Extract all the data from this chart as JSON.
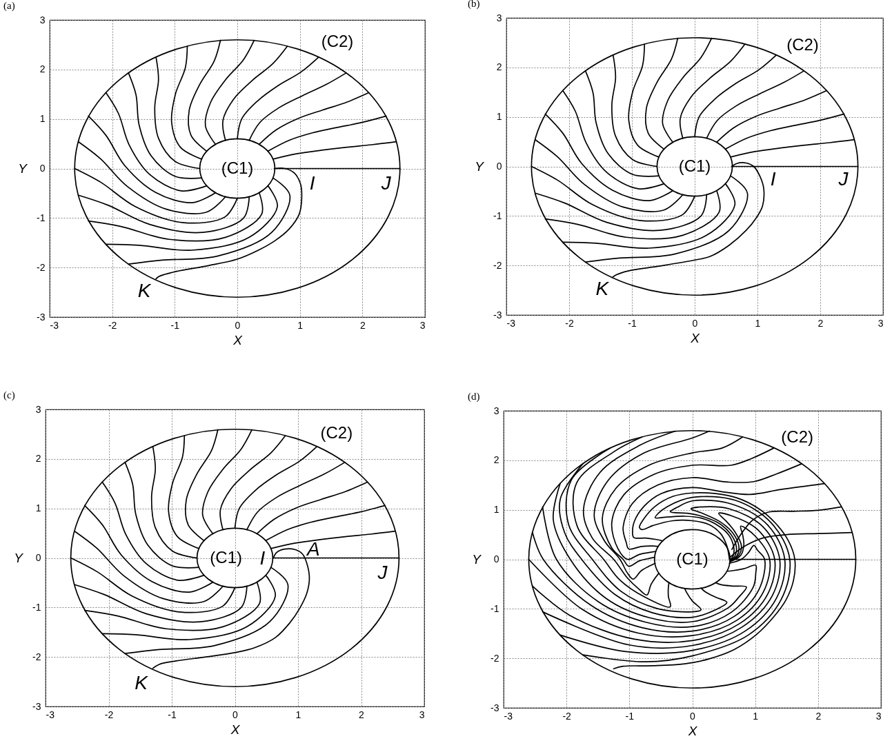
{
  "chart_data": [
    {
      "type": "line",
      "title": "(a)",
      "xlabel": "X",
      "ylabel": "Y",
      "xlim": [
        -3,
        3
      ],
      "ylim": [
        -3,
        3
      ],
      "xticks": [
        -3,
        -2,
        -1,
        0,
        1,
        2,
        3
      ],
      "yticks": [
        -3,
        -2,
        -1,
        0,
        1,
        2,
        3
      ],
      "grid": true,
      "annotations": [
        "(C1)",
        "(C2)",
        {
          "text": "I",
          "x": 1.01,
          "y": -0.31
        },
        {
          "text": "J",
          "x": 2.6,
          "y": 0
        },
        {
          "text": "K",
          "x": -1.3,
          "y": -2.23
        }
      ],
      "series": [
        {
          "color": "#000000",
          "x": [
            0.59,
            0.76,
            0.91,
            1.01,
            1.03,
            0.99,
            0.83,
            0.6,
            0.32,
            0,
            -0.46,
            -0.98,
            -1.25,
            -1.3
          ],
          "values": [
            0,
            0,
            -0.09,
            -0.31,
            -0.59,
            -0.92,
            -1.22,
            -1.46,
            -1.66,
            -1.83,
            -1.96,
            -2.08,
            -2.18,
            -2.23
          ]
        },
        {
          "color": "#000000",
          "x": [
            0.6,
            2.6
          ],
          "values": [
            0,
            0
          ]
        },
        {
          "color": "#000000",
          "x": [
            0.57,
            0.96,
            1.35,
            1.75,
            2.15,
            2.54
          ],
          "values": [
            0.19,
            0.3,
            0.37,
            0.43,
            0.48,
            0.54
          ]
        },
        {
          "color": "#000000",
          "x": [
            0.49,
            0.83,
            1.2,
            1.6,
            1.99,
            2.38
          ],
          "values": [
            0.35,
            0.57,
            0.72,
            0.83,
            0.93,
            1.06
          ]
        },
        {
          "color": "#000000",
          "x": [
            0.35,
            0.62,
            0.97,
            1.36,
            1.75,
            2.1
          ],
          "values": [
            0.49,
            0.78,
            1.01,
            1.18,
            1.34,
            1.53
          ]
        },
        {
          "color": "#000000",
          "x": [
            0.19,
            0.36,
            0.67,
            1.04,
            1.41,
            1.74
          ],
          "values": [
            0.57,
            0.93,
            1.23,
            1.47,
            1.69,
            1.93
          ]
        },
        {
          "color": "#000000",
          "x": [
            0,
            0.07,
            0.32,
            0.66,
            1.02,
            1.3
          ],
          "values": [
            0.6,
            1,
            1.36,
            1.68,
            1.95,
            2.25
          ]
        },
        {
          "color": "#000000",
          "x": [
            -0.19,
            -0.23,
            -0.06,
            0.24,
            0.57,
            0.8
          ],
          "values": [
            0.57,
            0.97,
            1.4,
            1.78,
            2.12,
            2.47
          ]
        },
        {
          "color": "#000000",
          "x": [
            -0.35,
            -0.51,
            -0.43,
            -0.19,
            0.1,
            0.27
          ],
          "values": [
            0.49,
            0.86,
            1.33,
            1.79,
            2.2,
            2.59
          ]
        },
        {
          "color": "#000000",
          "x": [
            -0.49,
            -0.74,
            -0.77,
            -0.6,
            -0.37,
            -0.27
          ],
          "values": [
            0.35,
            0.67,
            1.17,
            1.7,
            2.17,
            2.59
          ]
        },
        {
          "color": "#000000",
          "x": [
            -0.57,
            -0.91,
            -1.05,
            -0.99,
            -0.83,
            -0.8
          ],
          "values": [
            0.19,
            0.43,
            0.93,
            1.5,
            2.04,
            2.47
          ]
        },
        {
          "color": "#000000",
          "x": [
            -0.6,
            -0.99,
            -1.26,
            -1.32,
            -1.26,
            -1.3
          ],
          "values": [
            0,
            0.14,
            0.61,
            1.23,
            1.8,
            2.25
          ]
        },
        {
          "color": "#000000",
          "x": [
            -0.57,
            -0.99,
            -1.38,
            -1.57,
            -1.62,
            -1.74
          ],
          "values": [
            -0.19,
            -0.16,
            0.26,
            0.88,
            1.49,
            1.93
          ]
        },
        {
          "color": "#000000",
          "x": [
            -0.49,
            -0.9,
            -1.4,
            -1.73,
            -1.9,
            -2.1
          ],
          "values": [
            -0.35,
            -0.45,
            -0.12,
            0.48,
            1.11,
            1.53
          ]
        },
        {
          "color": "#000000",
          "x": [
            -0.35,
            -0.72,
            -1.31,
            -1.8,
            -2.1,
            -2.38
          ],
          "values": [
            -0.49,
            -0.69,
            -0.48,
            0.06,
            0.67,
            1.06
          ]
        },
        {
          "color": "#000000",
          "x": [
            -0.19,
            -0.49,
            -1.14,
            -1.76,
            -2.19,
            -2.54
          ],
          "values": [
            -0.57,
            -0.88,
            -0.82,
            -0.36,
            0.2,
            0.54
          ]
        },
        {
          "color": "#000000",
          "x": [
            0,
            -0.2,
            -0.88,
            -1.63,
            -2.18,
            -2.6
          ],
          "values": [
            -0.6,
            -0.98,
            -1.09,
            -0.77,
            -0.28,
            0
          ]
        },
        {
          "color": "#000000",
          "x": [
            0.19,
            0.1,
            -0.55,
            -1.4,
            -2.07,
            -2.54
          ],
          "values": [
            -0.57,
            -1,
            -1.29,
            -1.13,
            -0.74,
            -0.54
          ]
        },
        {
          "color": "#000000",
          "x": [
            0.35,
            0.39,
            -0.19,
            -1.09,
            -1.86,
            -2.38
          ],
          "values": [
            -0.49,
            -0.92,
            -1.39,
            -1.43,
            -1.17,
            -1.06
          ]
        },
        {
          "color": "#000000",
          "x": [
            0.49,
            0.64,
            0.19,
            -0.73,
            -1.57,
            -2.1
          ],
          "values": [
            -0.35,
            -0.77,
            -1.39,
            -1.65,
            -1.55,
            -1.53
          ]
        },
        {
          "color": "#000000",
          "x": [
            0.57,
            0.84,
            0.55,
            -0.32,
            -1.2,
            -1.74
          ],
          "values": [
            -0.19,
            -0.54,
            -1.29,
            -1.77,
            -1.85,
            -1.93
          ]
        }
      ]
    },
    {
      "type": "line",
      "title": "(b)",
      "xlabel": "X",
      "ylabel": "Y",
      "xlim": [
        -3,
        3
      ],
      "ylim": [
        -3,
        3
      ],
      "xticks": [
        -3,
        -2,
        -1,
        0,
        1,
        2,
        3
      ],
      "yticks": [
        -3,
        -2,
        -1,
        0,
        1,
        2,
        3
      ],
      "grid": true,
      "annotations": [
        "(C1)",
        "(C2)",
        {
          "text": "I",
          "x": 1.04,
          "y": -0.2
        },
        {
          "text": "J",
          "x": 2.6,
          "y": 0
        },
        {
          "text": "K",
          "x": -1.31,
          "y": -2.24
        }
      ],
      "series": [
        {
          "color": "#000000",
          "x": [
            0.59,
            0.67,
            0.82,
            0.94,
            1.04,
            1.1,
            1.08,
            0.98,
            0.82,
            0.55,
            0.24,
            0,
            -0.55,
            -1.06,
            -1.25,
            -1.31
          ],
          "values": [
            0,
            0.06,
            0.07,
            0,
            -0.2,
            -0.45,
            -0.8,
            -1.04,
            -1.29,
            -1.59,
            -1.82,
            -1.89,
            -2.01,
            -2.11,
            -2.19,
            -2.24
          ]
        },
        {
          "color": "#000000",
          "x": [
            0.6,
            2.6
          ],
          "values": [
            0,
            0
          ]
        },
        {
          "color": "#000000",
          "x": [
            0.57,
            0.96,
            1.35,
            1.75,
            2.15,
            2.54
          ],
          "values": [
            0.19,
            0.3,
            0.37,
            0.43,
            0.48,
            0.54
          ]
        },
        {
          "color": "#000000",
          "x": [
            0.49,
            0.83,
            1.2,
            1.6,
            1.99,
            2.38
          ],
          "values": [
            0.35,
            0.57,
            0.72,
            0.83,
            0.93,
            1.06
          ]
        },
        {
          "color": "#000000",
          "x": [
            0.35,
            0.62,
            0.97,
            1.36,
            1.75,
            2.1
          ],
          "values": [
            0.49,
            0.78,
            1.01,
            1.18,
            1.34,
            1.53
          ]
        },
        {
          "color": "#000000",
          "x": [
            0.19,
            0.36,
            0.67,
            1.04,
            1.41,
            1.74
          ],
          "values": [
            0.57,
            0.93,
            1.23,
            1.47,
            1.69,
            1.93
          ]
        },
        {
          "color": "#000000",
          "x": [
            0,
            0.07,
            0.32,
            0.66,
            1.02,
            1.3
          ],
          "values": [
            0.6,
            1,
            1.36,
            1.68,
            1.95,
            2.25
          ]
        },
        {
          "color": "#000000",
          "x": [
            -0.19,
            -0.23,
            -0.06,
            0.24,
            0.57,
            0.8
          ],
          "values": [
            0.57,
            0.97,
            1.4,
            1.78,
            2.12,
            2.47
          ]
        },
        {
          "color": "#000000",
          "x": [
            -0.35,
            -0.51,
            -0.43,
            -0.19,
            0.1,
            0.27
          ],
          "values": [
            0.49,
            0.86,
            1.33,
            1.79,
            2.2,
            2.59
          ]
        },
        {
          "color": "#000000",
          "x": [
            -0.49,
            -0.74,
            -0.77,
            -0.6,
            -0.37,
            -0.27
          ],
          "values": [
            0.35,
            0.67,
            1.17,
            1.7,
            2.17,
            2.59
          ]
        },
        {
          "color": "#000000",
          "x": [
            -0.57,
            -0.91,
            -1.05,
            -0.99,
            -0.83,
            -0.8
          ],
          "values": [
            0.19,
            0.43,
            0.93,
            1.5,
            2.04,
            2.47
          ]
        },
        {
          "color": "#000000",
          "x": [
            -0.6,
            -0.99,
            -1.26,
            -1.32,
            -1.26,
            -1.3
          ],
          "values": [
            0,
            0.14,
            0.61,
            1.23,
            1.8,
            2.25
          ]
        },
        {
          "color": "#000000",
          "x": [
            -0.57,
            -0.99,
            -1.38,
            -1.57,
            -1.62,
            -1.74
          ],
          "values": [
            -0.19,
            -0.16,
            0.26,
            0.88,
            1.49,
            1.93
          ]
        },
        {
          "color": "#000000",
          "x": [
            -0.49,
            -0.9,
            -1.4,
            -1.73,
            -1.9,
            -2.1
          ],
          "values": [
            -0.35,
            -0.45,
            -0.12,
            0.48,
            1.11,
            1.53
          ]
        },
        {
          "color": "#000000",
          "x": [
            -0.35,
            -0.72,
            -1.31,
            -1.8,
            -2.1,
            -2.38
          ],
          "values": [
            -0.49,
            -0.69,
            -0.48,
            0.06,
            0.67,
            1.06
          ]
        },
        {
          "color": "#000000",
          "x": [
            -0.19,
            -0.49,
            -1.14,
            -1.76,
            -2.19,
            -2.54
          ],
          "values": [
            -0.57,
            -0.88,
            -0.82,
            -0.36,
            0.2,
            0.54
          ]
        },
        {
          "color": "#000000",
          "x": [
            0,
            -0.2,
            -0.88,
            -1.63,
            -2.18,
            -2.6
          ],
          "values": [
            -0.6,
            -0.98,
            -1.09,
            -0.77,
            -0.28,
            0
          ]
        },
        {
          "color": "#000000",
          "x": [
            0.19,
            0.1,
            -0.55,
            -1.4,
            -2.07,
            -2.54
          ],
          "values": [
            -0.57,
            -1,
            -1.29,
            -1.13,
            -0.74,
            -0.54
          ]
        },
        {
          "color": "#000000",
          "x": [
            0.35,
            0.39,
            -0.19,
            -1.09,
            -1.86,
            -2.38
          ],
          "values": [
            -0.49,
            -0.92,
            -1.39,
            -1.43,
            -1.17,
            -1.06
          ]
        },
        {
          "color": "#000000",
          "x": [
            0.49,
            0.64,
            0.19,
            -0.73,
            -1.57,
            -2.1
          ],
          "values": [
            -0.35,
            -0.77,
            -1.39,
            -1.65,
            -1.55,
            -1.53
          ]
        },
        {
          "color": "#000000",
          "x": [
            0.57,
            0.84,
            0.55,
            -0.32,
            -1.2,
            -1.74
          ],
          "values": [
            -0.19,
            -0.54,
            -1.29,
            -1.77,
            -1.85,
            -1.93
          ]
        }
      ]
    },
    {
      "type": "line",
      "title": "(c)",
      "xlabel": "X",
      "ylabel": "Y",
      "xlim": [
        -3,
        3
      ],
      "ylim": [
        -3,
        3
      ],
      "xticks": [
        -3,
        -2,
        -1,
        0,
        1,
        2,
        3
      ],
      "yticks": [
        -3,
        -2,
        -1,
        0,
        1,
        2,
        3
      ],
      "grid": true,
      "annotations": [
        "(C1)",
        "(C2)",
        {
          "text": "I",
          "x": 0.61,
          "y": 0
        },
        {
          "text": "A",
          "x": 1.07,
          "y": 0.08
        },
        {
          "text": "J",
          "x": 2.6,
          "y": 0
        },
        {
          "text": "K",
          "x": -1.3,
          "y": -2.23
        }
      ],
      "series": [
        {
          "color": "#000000",
          "x": [
            0.61,
            0.66,
            0.79,
            0.95,
            1.07,
            1.14,
            1.18,
            1.14,
            1.03,
            0.87,
            0.64,
            0.32,
            0.01,
            -0.46,
            -0.93,
            -1.2,
            -1.3
          ],
          "values": [
            0,
            0.11,
            0.18,
            0.17,
            0.08,
            -0.11,
            -0.41,
            -0.71,
            -1.01,
            -1.31,
            -1.61,
            -1.81,
            -1.91,
            -2,
            -2.08,
            -2.15,
            -2.23
          ]
        },
        {
          "color": "#000000",
          "x": [
            0.6,
            2.6
          ],
          "values": [
            0,
            0
          ]
        },
        {
          "color": "#000000",
          "x": [
            0.57,
            0.96,
            1.35,
            1.75,
            2.15,
            2.54
          ],
          "values": [
            0.19,
            0.3,
            0.37,
            0.43,
            0.48,
            0.54
          ]
        },
        {
          "color": "#000000",
          "x": [
            0.49,
            0.83,
            1.2,
            1.6,
            1.99,
            2.38
          ],
          "values": [
            0.35,
            0.57,
            0.72,
            0.83,
            0.93,
            1.06
          ]
        },
        {
          "color": "#000000",
          "x": [
            0.35,
            0.62,
            0.97,
            1.36,
            1.75,
            2.1
          ],
          "values": [
            0.49,
            0.78,
            1.01,
            1.18,
            1.34,
            1.53
          ]
        },
        {
          "color": "#000000",
          "x": [
            0.19,
            0.36,
            0.67,
            1.04,
            1.41,
            1.74
          ],
          "values": [
            0.57,
            0.93,
            1.23,
            1.47,
            1.69,
            1.93
          ]
        },
        {
          "color": "#000000",
          "x": [
            0,
            0.07,
            0.32,
            0.66,
            1.02,
            1.3
          ],
          "values": [
            0.6,
            1,
            1.36,
            1.68,
            1.95,
            2.25
          ]
        },
        {
          "color": "#000000",
          "x": [
            -0.19,
            -0.23,
            -0.06,
            0.24,
            0.57,
            0.8
          ],
          "values": [
            0.57,
            0.97,
            1.4,
            1.78,
            2.12,
            2.47
          ]
        },
        {
          "color": "#000000",
          "x": [
            -0.35,
            -0.51,
            -0.43,
            -0.19,
            0.1,
            0.27
          ],
          "values": [
            0.49,
            0.86,
            1.33,
            1.79,
            2.2,
            2.59
          ]
        },
        {
          "color": "#000000",
          "x": [
            -0.49,
            -0.74,
            -0.77,
            -0.6,
            -0.37,
            -0.27
          ],
          "values": [
            0.35,
            0.67,
            1.17,
            1.7,
            2.17,
            2.59
          ]
        },
        {
          "color": "#000000",
          "x": [
            -0.57,
            -0.91,
            -1.05,
            -0.99,
            -0.83,
            -0.8
          ],
          "values": [
            0.19,
            0.43,
            0.93,
            1.5,
            2.04,
            2.47
          ]
        },
        {
          "color": "#000000",
          "x": [
            -0.6,
            -0.99,
            -1.26,
            -1.32,
            -1.26,
            -1.3
          ],
          "values": [
            0,
            0.14,
            0.61,
            1.23,
            1.8,
            2.25
          ]
        },
        {
          "color": "#000000",
          "x": [
            -0.57,
            -0.99,
            -1.38,
            -1.57,
            -1.62,
            -1.74
          ],
          "values": [
            -0.19,
            -0.16,
            0.26,
            0.88,
            1.49,
            1.93
          ]
        },
        {
          "color": "#000000",
          "x": [
            -0.49,
            -0.9,
            -1.4,
            -1.73,
            -1.9,
            -2.1
          ],
          "values": [
            -0.35,
            -0.45,
            -0.12,
            0.48,
            1.11,
            1.53
          ]
        },
        {
          "color": "#000000",
          "x": [
            -0.35,
            -0.72,
            -1.31,
            -1.8,
            -2.1,
            -2.38
          ],
          "values": [
            -0.49,
            -0.69,
            -0.48,
            0.06,
            0.67,
            1.06
          ]
        },
        {
          "color": "#000000",
          "x": [
            -0.19,
            -0.49,
            -1.14,
            -1.76,
            -2.19,
            -2.54
          ],
          "values": [
            -0.57,
            -0.88,
            -0.82,
            -0.36,
            0.2,
            0.54
          ]
        },
        {
          "color": "#000000",
          "x": [
            0,
            -0.2,
            -0.88,
            -1.63,
            -2.18,
            -2.6
          ],
          "values": [
            -0.6,
            -0.98,
            -1.09,
            -0.77,
            -0.28,
            0
          ]
        },
        {
          "color": "#000000",
          "x": [
            0.19,
            0.1,
            -0.55,
            -1.4,
            -2.07,
            -2.54
          ],
          "values": [
            -0.57,
            -1,
            -1.29,
            -1.13,
            -0.74,
            -0.54
          ]
        },
        {
          "color": "#000000",
          "x": [
            0.35,
            0.39,
            -0.19,
            -1.09,
            -1.86,
            -2.38
          ],
          "values": [
            -0.49,
            -0.92,
            -1.39,
            -1.43,
            -1.17,
            -1.06
          ]
        },
        {
          "color": "#000000",
          "x": [
            0.49,
            0.64,
            0.19,
            -0.73,
            -1.57,
            -2.1
          ],
          "values": [
            -0.35,
            -0.77,
            -1.39,
            -1.65,
            -1.55,
            -1.53
          ]
        },
        {
          "color": "#000000",
          "x": [
            0.57,
            0.84,
            0.55,
            -0.32,
            -1.2,
            -1.74
          ],
          "values": [
            -0.19,
            -0.54,
            -1.29,
            -1.77,
            -1.85,
            -1.93
          ]
        }
      ]
    },
    {
      "type": "line",
      "title": "(d)",
      "xlabel": "X",
      "ylabel": "Y",
      "xlim": [
        -3,
        3
      ],
      "ylim": [
        -3,
        3
      ],
      "xticks": [
        -3,
        -2,
        -1,
        0,
        1,
        2,
        3
      ],
      "yticks": [
        -3,
        -2,
        -1,
        0,
        1,
        2,
        3
      ],
      "grid": true,
      "annotations": [
        "(C1)",
        "(C2)"
      ],
      "series": [
        {
          "color": "#000000",
          "x": [
            0.59,
            0.55,
            0.45,
            0.27,
            0,
            -0.31,
            -0.63,
            -0.8,
            -0.84,
            -0.78,
            -0.59,
            -0.31,
            0,
            0.35,
            0.71,
            1.06,
            1.33,
            1.53,
            1.63,
            1.61,
            1.49,
            1.29,
            1.02,
            0.67,
            0.27,
            -0.12,
            -0.63,
            -1.1,
            -1.25
          ],
          "values": [
            0,
            0.27,
            0.52,
            0.7,
            0.78,
            0.78,
            0.68,
            0.6,
            0.65,
            0.8,
            1.07,
            1.27,
            1.34,
            1.33,
            1.24,
            1.02,
            0.72,
            0.37,
            0,
            -0.42,
            -0.82,
            -1.17,
            -1.52,
            -1.82,
            -2.01,
            -2.11,
            -2.15,
            -2.16,
            -2.21
          ]
        },
        {
          "color": "#000000",
          "x": [
            0.6,
            2.6
          ],
          "values": [
            0,
            0
          ]
        },
        {
          "color": "#000000",
          "x": [
            2.54,
            2,
            1.5,
            1.15,
            0.88,
            0.7,
            0.6
          ],
          "values": [
            0.54,
            0.52,
            0.5,
            0.44,
            0.3,
            0.15,
            0.04
          ]
        },
        {
          "color": "#000000",
          "x": [
            2.37,
            2,
            1.6,
            1.2,
            0.95,
            0.76,
            0.63
          ],
          "values": [
            1.06,
            0.99,
            0.97,
            0.95,
            0.78,
            0.48,
            0.2
          ]
        },
        {
          "color": "#000000",
          "x": [
            2.1,
            1.41,
            0.92,
            0.5,
            0,
            -0.49,
            -0.76,
            -0.92,
            -0.95,
            -0.93,
            -0.74,
            -0.57,
            -0.47
          ],
          "values": [
            1.53,
            1.41,
            1.31,
            1.36,
            1.45,
            1.33,
            1.08,
            0.77,
            0.55,
            0.44,
            0.43,
            0.4,
            0.37
          ]
        },
        {
          "color": "#000000",
          "x": [
            1.74,
            1.35,
            0.98,
            0.57,
            0,
            -0.55,
            -0.95,
            -1.1,
            -1.05,
            -1.01,
            -0.81,
            -0.63,
            -0.54
          ],
          "values": [
            1.93,
            1.73,
            1.57,
            1.56,
            1.65,
            1.5,
            1.13,
            0.64,
            0.34,
            0.21,
            0.26,
            0.27,
            0.26
          ]
        },
        {
          "color": "#000000",
          "x": [
            1.3,
            0.95,
            0.62,
            0,
            -0.62,
            -1.09,
            -1.28,
            -1.18,
            -1.03,
            -0.84,
            -0.67,
            -0.58
          ],
          "values": [
            2.25,
            2.04,
            1.9,
            1.9,
            1.71,
            1.3,
            0.74,
            0.21,
            0,
            0.1,
            0.14,
            0.16
          ]
        },
        {
          "color": "#000000",
          "x": [
            0.8,
            0.48,
            0,
            -0.69,
            -1.21,
            -1.43,
            -1.28,
            -1.1,
            -1.01,
            -0.84,
            -0.68,
            -0.6
          ],
          "values": [
            2.47,
            2.25,
            2.15,
            1.9,
            1.44,
            0.83,
            0.23,
            0,
            -0.14,
            -0.03,
            0.02,
            0.04
          ]
        },
        {
          "color": "#000000",
          "x": [
            0.27,
            0,
            -0.78,
            -1.34,
            -1.56,
            -1.4,
            -1.15,
            -1.03,
            -0.94,
            -0.81,
            -0.67,
            -0.59
          ],
          "values": [
            2.59,
            2.45,
            2.14,
            1.59,
            0.9,
            0.38,
            0,
            -0.28,
            -0.4,
            -0.23,
            -0.13,
            -0.08
          ]
        },
        {
          "color": "#000000",
          "x": [
            -0.27,
            -0.84,
            -1.47,
            -1.73,
            -1.59,
            -1.25,
            -1.03,
            -0.85,
            -0.72,
            -0.66,
            -0.58,
            -0.53
          ],
          "values": [
            2.59,
            2.3,
            1.75,
            1,
            0.43,
            0,
            -0.38,
            -0.6,
            -0.72,
            -0.52,
            -0.36,
            -0.28
          ]
        },
        {
          "color": "#000000",
          "x": [
            -0.8,
            -1.25,
            -1.84,
            -1.83,
            -1.41,
            -1.15,
            -0.76,
            -0.35,
            -0.38,
            -0.38,
            -0.37
          ],
          "values": [
            2.47,
            2.17,
            1.54,
            0.67,
            0,
            -0.42,
            -0.76,
            -0.96,
            -0.75,
            -0.56,
            -0.47
          ]
        },
        {
          "color": "#000000",
          "x": [
            -1.3,
            -1.92,
            -1.97,
            -1.59,
            -1.13,
            -0.57,
            0,
            0.14,
            0,
            -0.09,
            -0.12
          ],
          "values": [
            2.25,
            1.61,
            0.72,
            0,
            -0.65,
            -0.99,
            -1.06,
            -1.02,
            -0.84,
            -0.67,
            -0.59
          ]
        },
        {
          "color": "#000000",
          "x": [
            -1.74,
            -2.1,
            -2.03,
            -1.76,
            -1.23,
            -0.63,
            0,
            0.37,
            0.55,
            0.36,
            0.2,
            0.14
          ],
          "values": [
            1.93,
            1.21,
            0.54,
            0,
            -0.71,
            -1.08,
            -1.17,
            -1.02,
            -0.87,
            -0.76,
            -0.65,
            -0.58
          ]
        },
        {
          "color": "#000000",
          "x": [
            -2.1,
            -2.21,
            -1.94,
            -1.37,
            -0.68,
            0,
            0.57,
            0.75,
            0.86,
            0.64,
            0.45,
            0.37
          ],
          "values": [
            1.53,
            0.8,
            0,
            -0.79,
            -1.18,
            -1.26,
            -0.98,
            -0.75,
            -0.56,
            -0.54,
            -0.51,
            -0.47
          ]
        },
        {
          "color": "#000000",
          "x": [
            -2.38,
            -2.16,
            -1.49,
            -0.74,
            0,
            0.62,
            0.97,
            1.01,
            1.01,
            0.82,
            0.64,
            0.55
          ],
          "values": [
            1.06,
            0,
            -0.86,
            -1.27,
            -1.36,
            -1.07,
            -0.56,
            -0.27,
            -0.12,
            -0.19,
            -0.23,
            -0.24
          ]
        },
        {
          "color": "#000000",
          "x": [
            -2.54,
            -2.37,
            -1.61,
            -0.8,
            0,
            0.67,
            1.06,
            1.15,
            1.04,
            0.98,
            0.89,
            0.78,
            0.59
          ],
          "values": [
            0.54,
            0,
            -0.93,
            -1.38,
            -1.45,
            -1.15,
            -0.61,
            0,
            0.18,
            0.28,
            0.13,
            0,
            -0.08
          ]
        },
        {
          "color": "#000000",
          "x": [
            -2.6,
            -1.75,
            -0.86,
            0,
            0.71,
            1.13,
            1.23,
            1,
            0.77,
            0.8,
            0.82,
            0.77,
            0.6
          ],
          "values": [
            0,
            -1.01,
            -1.49,
            -1.54,
            -1.23,
            -0.66,
            0,
            0.47,
            0.67,
            0.5,
            0.3,
            0.08,
            -0.05
          ]
        },
        {
          "color": "#000000",
          "x": [
            -2.54,
            -1.95,
            -0.93,
            0,
            0.75,
            1.2,
            1.31,
            1.04,
            0.62,
            0.42,
            0.54,
            0.67,
            0.78,
            0.74,
            0.6
          ],
          "values": [
            -0.54,
            -1.13,
            -1.61,
            -1.64,
            -1.3,
            -0.7,
            0,
            0.6,
            0.88,
            0.93,
            0.77,
            0.57,
            0.28,
            0.08,
            -0.04
          ]
        },
        {
          "color": "#000000",
          "x": [
            -2.38,
            -1,
            0,
            0.79,
            1.27,
            1.39,
            1.13,
            0.59,
            0.19,
            -0.02,
            0.16,
            0.44,
            0.64,
            0.74,
            0.71,
            0.6
          ],
          "values": [
            -1.06,
            -1.73,
            -1.74,
            -1.37,
            -0.74,
            0,
            0.65,
            1.02,
            1.06,
            1.02,
            0.93,
            0.76,
            0.54,
            0.27,
            0.07,
            -0.03
          ]
        },
        {
          "color": "#000000",
          "x": [
            -2.1,
            -1.08,
            0,
            0.84,
            1.34,
            1.47,
            1.2,
            0.64,
            0,
            -0.24,
            -0.35,
            -0.08,
            0.15,
            0.42,
            0.61,
            0.7,
            0.68,
            0.6
          ],
          "values": [
            -1.53,
            -1.86,
            -1.84,
            -1.45,
            -0.78,
            0,
            0.69,
            1.11,
            1.18,
            1.05,
            0.96,
            0.93,
            0.87,
            0.73,
            0.51,
            0.26,
            0.07,
            -0.02
          ]
        },
        {
          "color": "#000000",
          "x": [
            -1.74,
            -0.75,
            0,
            0.89,
            1.41,
            1.55,
            1.26,
            0.69,
            0,
            -0.39,
            -0.54,
            -0.59,
            -0.43,
            -0.12,
            0.15,
            0.4,
            0.58,
            0.66,
            0.65,
            0.6
          ],
          "values": [
            -1.93,
            -2.07,
            -1.95,
            -1.53,
            -0.82,
            0,
            0.73,
            1.19,
            1.25,
            1.07,
            0.93,
            0.84,
            0.85,
            0.87,
            0.83,
            0.69,
            0.49,
            0.24,
            0.07,
            -0.01
          ]
        }
      ]
    }
  ]
}
